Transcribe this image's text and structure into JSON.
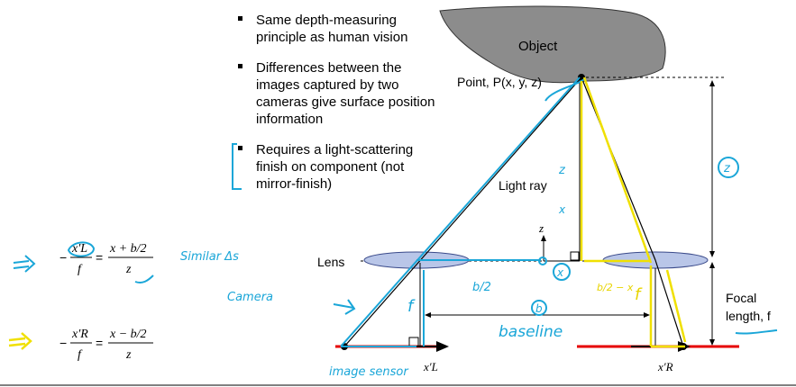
{
  "bullets": [
    {
      "lines": [
        "Same depth-measuring",
        "principle as human vision"
      ]
    },
    {
      "lines": [
        "Differences between the",
        "images captured by two",
        "cameras give surface position",
        "information"
      ]
    },
    {
      "lines": [
        "Requires a light-scattering",
        "finish on component (not",
        "mirror-finish)"
      ]
    }
  ],
  "labels": {
    "object": "Object",
    "point": "Point, P(x, y, z)",
    "light_ray": "Light ray",
    "lens": "Lens",
    "z_axis": "z",
    "focal": [
      "Focal",
      "length, f"
    ],
    "xL": "x′L",
    "xR": "x′R"
  },
  "equations": {
    "eq1": {
      "lhs_num": "x′L",
      "lhs_den": "f",
      "rhs_num": "x + b/2",
      "rhs_den": "z"
    },
    "eq2": {
      "lhs_num": "x′R",
      "lhs_den": "f",
      "rhs_num": "x − b/2",
      "rhs_den": "z"
    }
  },
  "annotations": {
    "similar": "Similar Δs",
    "camera": "Camera",
    "image_sensor": "image sensor",
    "b2": "b/2",
    "b": "b",
    "baseline": "baseline",
    "z_small": "z",
    "z_circle": "z",
    "x_circle": "x",
    "f_left": "f",
    "f_right": "f",
    "b2_minus_x": "b/2 − x",
    "x_top": "x"
  },
  "colors": {
    "object_fill": "#8c8c8c",
    "lens_fill": "#b9c6e8",
    "sensor": "#e60000",
    "blue_ink": "#1aa6d8",
    "yellow_ink": "#f0e000"
  }
}
